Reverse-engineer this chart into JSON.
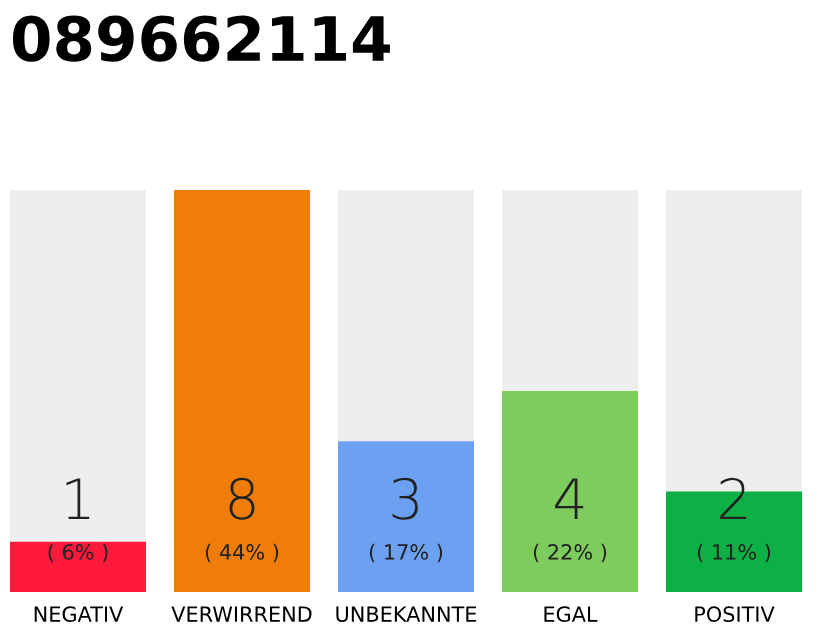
{
  "chart_data": {
    "type": "bar",
    "title": "089662114",
    "categories": [
      "NEGATIV",
      "VERWIRREND",
      "UNBEKANNTE",
      "EGAL",
      "POSITIV"
    ],
    "values": [
      1,
      8,
      3,
      4,
      2
    ],
    "colors": [
      "#ff1a3c",
      "#f07d0a",
      "#6ca0f0",
      "#7ecb5e",
      "#0db045"
    ],
    "data_labels": true,
    "annotations": [
      "( 6% )",
      "( 44% )",
      "( 17% )",
      "( 22% )",
      "( 11% )"
    ],
    "ylim": [
      0,
      8
    ],
    "tick_labels": "x",
    "grid": false
  }
}
